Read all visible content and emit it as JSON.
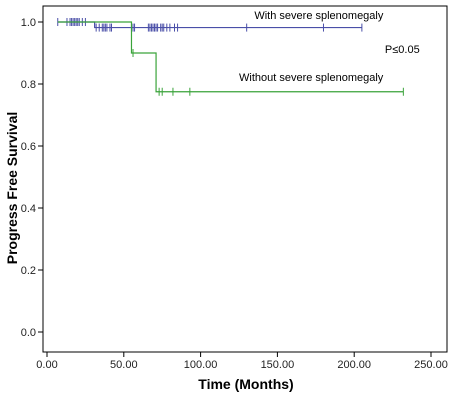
{
  "chart_data": {
    "type": "line",
    "title": "",
    "xlabel": "Time (Months)",
    "ylabel": "Progress Free Survival",
    "xlim": [
      0,
      250
    ],
    "ylim": [
      0,
      1.0
    ],
    "x_ticks": [
      "0.00",
      "50.00",
      "100.00",
      "150.00",
      "200.00",
      "250.00"
    ],
    "y_ticks": [
      "0.0",
      "0.2",
      "0.4",
      "0.6",
      "0.8",
      "1.0"
    ],
    "grid": false,
    "legend": "none",
    "series": [
      {
        "name": "With severe splenomegaly",
        "color": "#4a4fa8",
        "step_points": [
          [
            7,
            1.0
          ],
          [
            31,
            1.0
          ],
          [
            31,
            0.982
          ],
          [
            205,
            0.982
          ]
        ],
        "censored_x": [
          7,
          13,
          15,
          16,
          17,
          18,
          19,
          20,
          21,
          23,
          25,
          32,
          34,
          36,
          37,
          38,
          39,
          41,
          42,
          55,
          56,
          57,
          66,
          67,
          68,
          69,
          70,
          71,
          72,
          74,
          75,
          76,
          78,
          80,
          83,
          85,
          130,
          180,
          205
        ]
      },
      {
        "name": "Without severe splenomegaly",
        "color": "#3aa33a",
        "step_points": [
          [
            7,
            1.0
          ],
          [
            55,
            1.0
          ],
          [
            55,
            0.9
          ],
          [
            71,
            0.9
          ],
          [
            71,
            0.775
          ],
          [
            232,
            0.775
          ]
        ],
        "censored_x": [
          56,
          73,
          75,
          82,
          93,
          232
        ]
      }
    ],
    "annotations": [
      {
        "text": "With severe splenomegaly",
        "x": 135,
        "y": 1.01
      },
      {
        "text": "P≤0.05",
        "x": 220,
        "y": 0.9
      },
      {
        "text": "Without severe splenomegaly",
        "x": 125,
        "y": 0.81
      }
    ]
  }
}
